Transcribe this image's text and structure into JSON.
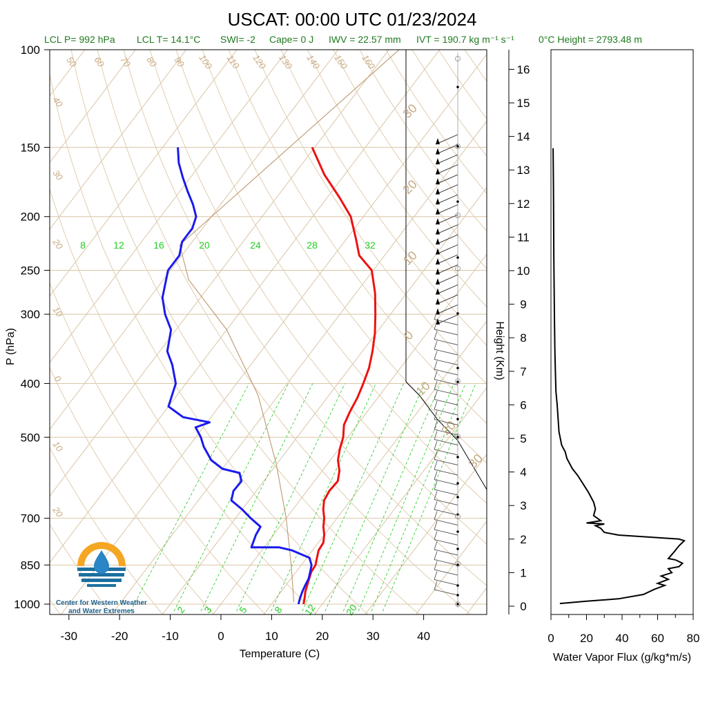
{
  "title": "USCAT: 00:00 UTC 01/23/2024",
  "subtitle": {
    "lcl_p": "LCL P= 992 hPa",
    "lcl_t": "LCL T= 14.1°C",
    "swi": "SWI= -2",
    "cape": "Cape= 0 J",
    "iwv": "IWV = 22.57 mm",
    "ivt": "IVT = 190.7 kg m⁻¹ s⁻¹",
    "zero_height": "0°C Height = 2793.48 m"
  },
  "logo": {
    "line1": "Center for Western Weather",
    "line2": "and Water Extremes"
  },
  "colors": {
    "temperature": "#ee1111",
    "dewpoint": "#1a1aee",
    "mixing": "#22cc22",
    "adiabat": "#c8aa82",
    "flux": "#000000"
  },
  "chart_data": [
    {
      "type": "line",
      "title": "USCAT: 00:00 UTC 01/23/2024",
      "xlabel": "Temperature (C)",
      "ylabel": "P (hPa)",
      "xlim": [
        -35,
        50
      ],
      "ylim": [
        1030,
        100
      ],
      "y_scale": "log",
      "x_ticks": [
        -30,
        -20,
        -10,
        0,
        10,
        20,
        30,
        40
      ],
      "y_ticks": [
        100,
        150,
        200,
        250,
        300,
        400,
        500,
        700,
        850,
        1000
      ],
      "mixing_ratio_labels": [
        "8",
        "12",
        "16",
        "20",
        "24",
        "28",
        "32"
      ],
      "mixing_ratio_bottom_labels": [
        "2",
        "3",
        "5",
        "8",
        "12",
        "20"
      ],
      "dry_adiabat_labels": [
        "50",
        "60",
        "70",
        "80",
        "90",
        "100",
        "110",
        "120",
        "130",
        "140",
        "150",
        "160"
      ],
      "isotherm_labels": [
        "40",
        "30",
        "20",
        "10",
        "0",
        "10",
        "20"
      ],
      "hodo_ring_labels": [
        "30",
        "20",
        "10",
        "0",
        "10",
        "20",
        "30"
      ],
      "series": [
        {
          "name": "Temperature",
          "points": [
            [
              16.3,
              1000
            ],
            [
              15.6,
              975
            ],
            [
              14.8,
              950
            ],
            [
              14.2,
              925
            ],
            [
              13.6,
              900
            ],
            [
              13.0,
              875
            ],
            [
              12.8,
              850
            ],
            [
              12.0,
              825
            ],
            [
              11.2,
              800
            ],
            [
              11.0,
              775
            ],
            [
              10.0,
              750
            ],
            [
              8.6,
              725
            ],
            [
              7.5,
              700
            ],
            [
              6.0,
              675
            ],
            [
              4.8,
              650
            ],
            [
              4.4,
              625
            ],
            [
              4.6,
              600
            ],
            [
              3.4,
              575
            ],
            [
              1.5,
              550
            ],
            [
              0.2,
              525
            ],
            [
              -0.9,
              500
            ],
            [
              -2.6,
              475
            ],
            [
              -3.4,
              450
            ],
            [
              -4.0,
              425
            ],
            [
              -5.0,
              400
            ],
            [
              -6.2,
              375
            ],
            [
              -8.0,
              350
            ],
            [
              -10.2,
              325
            ],
            [
              -13.0,
              300
            ],
            [
              -16.2,
              275
            ],
            [
              -20.3,
              250
            ],
            [
              -25.0,
              235
            ],
            [
              -28.0,
              220
            ],
            [
              -32.5,
              200
            ],
            [
              -37.5,
              185
            ],
            [
              -44.0,
              168
            ],
            [
              -50.5,
              150
            ]
          ]
        },
        {
          "name": "Dew Point",
          "points": [
            [
              15.3,
              1000
            ],
            [
              14.7,
              975
            ],
            [
              14.2,
              950
            ],
            [
              13.8,
              925
            ],
            [
              13.5,
              900
            ],
            [
              12.8,
              875
            ],
            [
              12.0,
              850
            ],
            [
              10.5,
              825
            ],
            [
              6.0,
              800
            ],
            [
              3.0,
              790
            ],
            [
              -2.5,
              790
            ],
            [
              -3.5,
              750
            ],
            [
              -3.8,
              725
            ],
            [
              -7.0,
              700
            ],
            [
              -10.0,
              675
            ],
            [
              -13.5,
              650
            ],
            [
              -14.5,
              625
            ],
            [
              -14.4,
              600
            ],
            [
              -16.0,
              580
            ],
            [
              -20.0,
              570
            ],
            [
              -23.5,
              550
            ],
            [
              -27.0,
              520
            ],
            [
              -29.0,
              500
            ],
            [
              -31.5,
              480
            ],
            [
              -29.5,
              470
            ],
            [
              -35.5,
              460
            ],
            [
              -40.0,
              440
            ],
            [
              -42.0,
              400
            ],
            [
              -45.5,
              370
            ],
            [
              -48.5,
              350
            ],
            [
              -51.0,
              320
            ],
            [
              -54.5,
              300
            ],
            [
              -57.5,
              280
            ],
            [
              -60.5,
              250
            ],
            [
              -60.5,
              235
            ],
            [
              -62.0,
              222
            ],
            [
              -62.0,
              210
            ],
            [
              -63.0,
              200
            ],
            [
              -65.5,
              190
            ],
            [
              -68.5,
              180
            ],
            [
              -71.5,
              170
            ],
            [
              -74.5,
              160
            ],
            [
              -77.0,
              150
            ]
          ]
        }
      ]
    },
    {
      "type": "line",
      "xlabel": "Water Vapor Flux (g/kg*m/s)",
      "ylabel": "Height (Km)",
      "xlim": [
        0,
        80
      ],
      "ylim": [
        0,
        16.4
      ],
      "x_ticks": [
        0,
        20,
        40,
        60,
        80
      ],
      "y_ticks": [
        0,
        1,
        2,
        3,
        4,
        5,
        6,
        7,
        8,
        9,
        10,
        11,
        12,
        13,
        14,
        15,
        16
      ],
      "series": [
        {
          "name": "Water Vapor Flux",
          "points": [
            [
              5,
              0.08
            ],
            [
              20,
              0.15
            ],
            [
              38,
              0.22
            ],
            [
              52,
              0.35
            ],
            [
              58,
              0.5
            ],
            [
              64,
              0.62
            ],
            [
              60,
              0.68
            ],
            [
              66,
              0.8
            ],
            [
              62,
              0.9
            ],
            [
              68,
              1.0
            ],
            [
              66,
              1.12
            ],
            [
              72,
              1.18
            ],
            [
              74,
              1.28
            ],
            [
              70,
              1.38
            ],
            [
              66,
              1.42
            ],
            [
              69,
              1.6
            ],
            [
              72,
              1.8
            ],
            [
              75,
              1.95
            ],
            [
              72,
              2.0
            ],
            [
              58,
              2.05
            ],
            [
              38,
              2.12
            ],
            [
              30,
              2.2
            ],
            [
              28,
              2.32
            ],
            [
              25,
              2.4
            ],
            [
              30,
              2.45
            ],
            [
              20,
              2.48
            ],
            [
              28,
              2.55
            ],
            [
              24,
              2.7
            ],
            [
              25,
              2.9
            ],
            [
              24,
              3.1
            ],
            [
              21,
              3.4
            ],
            [
              18,
              3.65
            ],
            [
              15,
              3.9
            ],
            [
              12,
              4.1
            ],
            [
              9,
              4.4
            ],
            [
              8,
              4.6
            ],
            [
              6,
              4.8
            ],
            [
              4.5,
              5.2
            ],
            [
              4.0,
              5.6
            ],
            [
              3.5,
              6.0
            ],
            [
              2.8,
              6.4
            ],
            [
              2.5,
              7.0
            ],
            [
              2.2,
              7.6
            ],
            [
              2.0,
              8.5
            ],
            [
              1.8,
              9.5
            ],
            [
              1.6,
              10.5
            ],
            [
              1.5,
              11.5
            ],
            [
              1.4,
              12.5
            ],
            [
              1.3,
              13.2
            ],
            [
              1.2,
              13.65
            ]
          ]
        }
      ]
    }
  ]
}
